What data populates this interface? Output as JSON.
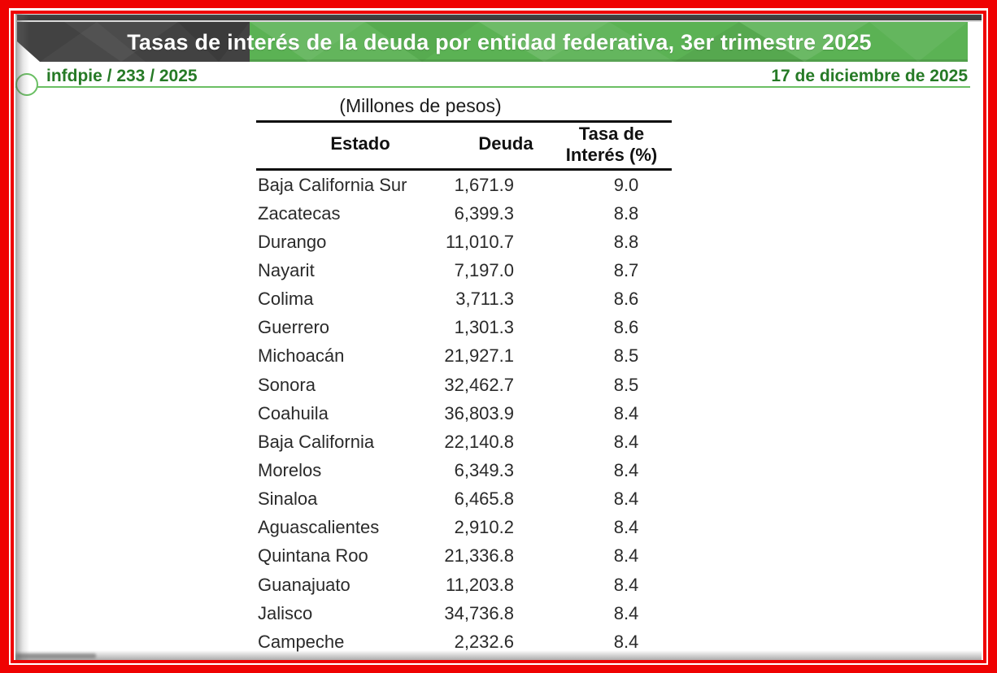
{
  "header": {
    "title": "Tasas de interés de la deuda por entidad federativa, 3er trimestre 2025",
    "doc_id": "infdpie / 233 / 2025",
    "date": "17 de diciembre de 2025"
  },
  "colors": {
    "frame_red": "#ef0202",
    "banner_green": "#5bb254",
    "banner_dark": "#424242",
    "rule_green": "#6abf63",
    "subheader_text_green": "#267a26",
    "table_text": "#2a2a2a"
  },
  "table": {
    "caption": "(Millones de pesos)",
    "headers": {
      "estado": "Estado",
      "deuda": "Deuda",
      "tasa_line1": "Tasa de",
      "tasa_line2": "Interés (%)"
    },
    "rows": [
      {
        "estado": "Baja California Sur",
        "deuda": "1,671.9",
        "tasa": "9.0"
      },
      {
        "estado": "Zacatecas",
        "deuda": "6,399.3",
        "tasa": "8.8"
      },
      {
        "estado": "Durango",
        "deuda": "11,010.7",
        "tasa": "8.8"
      },
      {
        "estado": "Nayarit",
        "deuda": "7,197.0",
        "tasa": "8.7"
      },
      {
        "estado": "Colima",
        "deuda": "3,711.3",
        "tasa": "8.6"
      },
      {
        "estado": "Guerrero",
        "deuda": "1,301.3",
        "tasa": "8.6"
      },
      {
        "estado": "Michoacán",
        "deuda": "21,927.1",
        "tasa": "8.5"
      },
      {
        "estado": "Sonora",
        "deuda": "32,462.7",
        "tasa": "8.5"
      },
      {
        "estado": "Coahuila",
        "deuda": "36,803.9",
        "tasa": "8.4"
      },
      {
        "estado": "Baja California",
        "deuda": "22,140.8",
        "tasa": "8.4"
      },
      {
        "estado": "Morelos",
        "deuda": "6,349.3",
        "tasa": "8.4"
      },
      {
        "estado": "Sinaloa",
        "deuda": "6,465.8",
        "tasa": "8.4"
      },
      {
        "estado": "Aguascalientes",
        "deuda": "2,910.2",
        "tasa": "8.4"
      },
      {
        "estado": "Quintana Roo",
        "deuda": "21,336.8",
        "tasa": "8.4"
      },
      {
        "estado": "Guanajuato",
        "deuda": "11,203.8",
        "tasa": "8.4"
      },
      {
        "estado": "Jalisco",
        "deuda": "34,736.8",
        "tasa": "8.4"
      },
      {
        "estado": "Campeche",
        "deuda": "2,232.6",
        "tasa": "8.4"
      }
    ]
  },
  "chart_data": {
    "type": "table",
    "title": "Tasas de interés de la deuda por entidad federativa, 3er trimestre 2025",
    "subtitle": "(Millones de pesos)",
    "columns": [
      "Estado",
      "Deuda",
      "Tasa de Interés (%)"
    ],
    "rows": [
      [
        "Baja California Sur",
        1671.9,
        9.0
      ],
      [
        "Zacatecas",
        6399.3,
        8.8
      ],
      [
        "Durango",
        11010.7,
        8.8
      ],
      [
        "Nayarit",
        7197.0,
        8.7
      ],
      [
        "Colima",
        3711.3,
        8.6
      ],
      [
        "Guerrero",
        1301.3,
        8.6
      ],
      [
        "Michoacán",
        21927.1,
        8.5
      ],
      [
        "Sonora",
        32462.7,
        8.5
      ],
      [
        "Coahuila",
        36803.9,
        8.4
      ],
      [
        "Baja California",
        22140.8,
        8.4
      ],
      [
        "Morelos",
        6349.3,
        8.4
      ],
      [
        "Sinaloa",
        6465.8,
        8.4
      ],
      [
        "Aguascalientes",
        2910.2,
        8.4
      ],
      [
        "Quintana Roo",
        21336.8,
        8.4
      ],
      [
        "Guanajuato",
        11203.8,
        8.4
      ],
      [
        "Jalisco",
        34736.8,
        8.4
      ],
      [
        "Campeche",
        2232.6,
        8.4
      ]
    ]
  }
}
